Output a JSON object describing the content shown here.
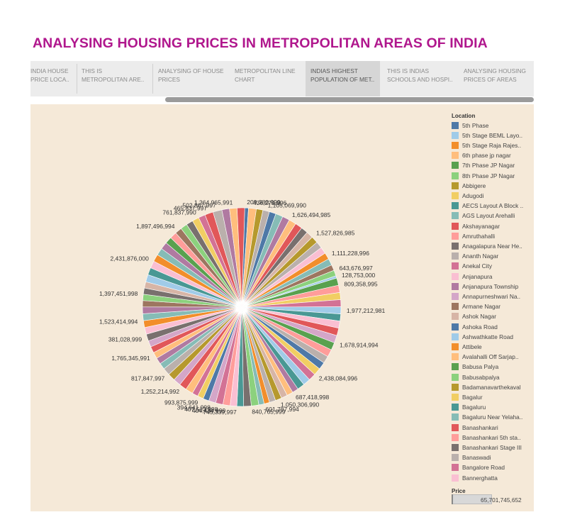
{
  "page": {
    "title": "ANALYSING HOUSING PRICES IN METROPOLITAN AREAS OF INDIA"
  },
  "tabs": [
    {
      "line1": "INDIA HOUSE",
      "line2": "PRICE LOCA..",
      "active": false
    },
    {
      "line1": "THIS IS",
      "line2": "METROPOLITAN ARE..",
      "active": false
    },
    {
      "line1": "ANALYSING OF HOUSE",
      "line2": "PRICES",
      "active": false
    },
    {
      "line1": "METROPOLITAN LINE",
      "line2": "CHART",
      "active": false
    },
    {
      "line1": "INDIAS HIGHEST",
      "line2": "POPULATION OF MET..",
      "active": true
    },
    {
      "line1": "THIS IS INDIAS",
      "line2": "SCHOOLS AND HOSPI..",
      "active": false
    },
    {
      "line1": "ANALYSING HOUSING",
      "line2": "PRICES OF AREAS",
      "active": false
    }
  ],
  "colors": {
    "title": "#b0178d",
    "panel_background": "#f5e9d8",
    "palette": [
      "#4e79a7",
      "#a0cbe8",
      "#f28e2b",
      "#ffbe7d",
      "#59a14f",
      "#8cd17d",
      "#b6992d",
      "#f1ce63",
      "#499894",
      "#86bcb6",
      "#e15759",
      "#ff9d9a",
      "#79706e",
      "#bab0ac",
      "#d37295",
      "#fabfd2",
      "#b07aa1",
      "#d4a6c8",
      "#9d7660",
      "#d7b5a6"
    ]
  },
  "chart_data": {
    "type": "pie",
    "title": "",
    "legend_title": "Location",
    "legend_position": "right",
    "legend_items": [
      "5th Phase",
      "5th Stage BEML Layo..",
      "5th Stage Raja Rajes..",
      "6th phase jp nagar",
      "7th Phase JP Nagar",
      "8th Phase JP Nagar",
      "Abbigere",
      "Adugodi",
      "AECS Layout A Block ..",
      "AGS Layout Arehalli",
      "Akshayanagar",
      "Amruthahalli",
      "Anagalapura Near He..",
      "Ananth Nagar",
      "Anekal City",
      "Anjanapura",
      "Anjanapura Township",
      "Annapurneshwari Na..",
      "Armane Nagar",
      "Ashok Nagar",
      "Ashoka Road",
      "Ashwathkatte Road",
      "Attibele",
      "Avalahalli Off Sarjap..",
      "Babusa Palya",
      "Babusabpalya",
      "Badamanavarthekaval",
      "Bagalur",
      "Bagaluru",
      "Bagaluru Near Yelaha..",
      "Banashankari",
      "Banashankari 5th sta..",
      "Banashankari Stage III",
      "Banaswadi",
      "Bangalore Road",
      "Bannerghatta"
    ],
    "size_legend": {
      "title": "Price",
      "value": "65,701,745,652"
    },
    "labeled_slices": [
      {
        "label": "209,380,999",
        "value": 209380999
      },
      {
        "label": "436,279,996",
        "value": 436279996
      },
      {
        "label": "1,105,069,990",
        "value": 1105069990
      },
      {
        "label": "1,626,494,985",
        "value": 1626494985
      },
      {
        "label": "1,527,826,985",
        "value": 1527826985
      },
      {
        "label": "1,111,228,996",
        "value": 1111228996
      },
      {
        "label": "643,676,997",
        "value": 643676997
      },
      {
        "label": "128,753,000",
        "value": 128753000
      },
      {
        "label": "809,358,995",
        "value": 809358995
      },
      {
        "label": "1,977,212,981",
        "value": 1977212981
      },
      {
        "label": "1,678,914,994",
        "value": 1678914994
      },
      {
        "label": "2,438,084,996",
        "value": 2438084996
      },
      {
        "label": "687,418,998",
        "value": 687418998
      },
      {
        "label": "1,050,306,990",
        "value": 1050306990
      },
      {
        "label": "601,787,994",
        "value": 601787994
      },
      {
        "label": "840,765,999",
        "value": 840765999
      },
      {
        "label": "745,339,997",
        "value": 745339997
      },
      {
        "label": "404,434,999",
        "value": 404434999
      },
      {
        "label": "407,513,998",
        "value": 407513998
      },
      {
        "label": "394,641,998",
        "value": 394641998
      },
      {
        "label": "993,875,999",
        "value": 993875999
      },
      {
        "label": "1,252,214,992",
        "value": 1252214992
      },
      {
        "label": "817,847,997",
        "value": 817847997
      },
      {
        "label": "1,765,345,991",
        "value": 1765345991
      },
      {
        "label": "381,028,999",
        "value": 381028999
      },
      {
        "label": "1,523,414,994",
        "value": 1523414994
      },
      {
        "label": "1,397,451,998",
        "value": 1397451998
      },
      {
        "label": "2,431,876,000",
        "value": 2431876000
      },
      {
        "label": "1,897,496,994",
        "value": 1897496994
      },
      {
        "label": "761,837,990",
        "value": 761837990
      },
      {
        "label": "465,837,997",
        "value": 465837997
      },
      {
        "label": "502,867,997",
        "value": 502867997
      },
      {
        "label": "1,264,965,991",
        "value": 1264965991
      }
    ]
  }
}
